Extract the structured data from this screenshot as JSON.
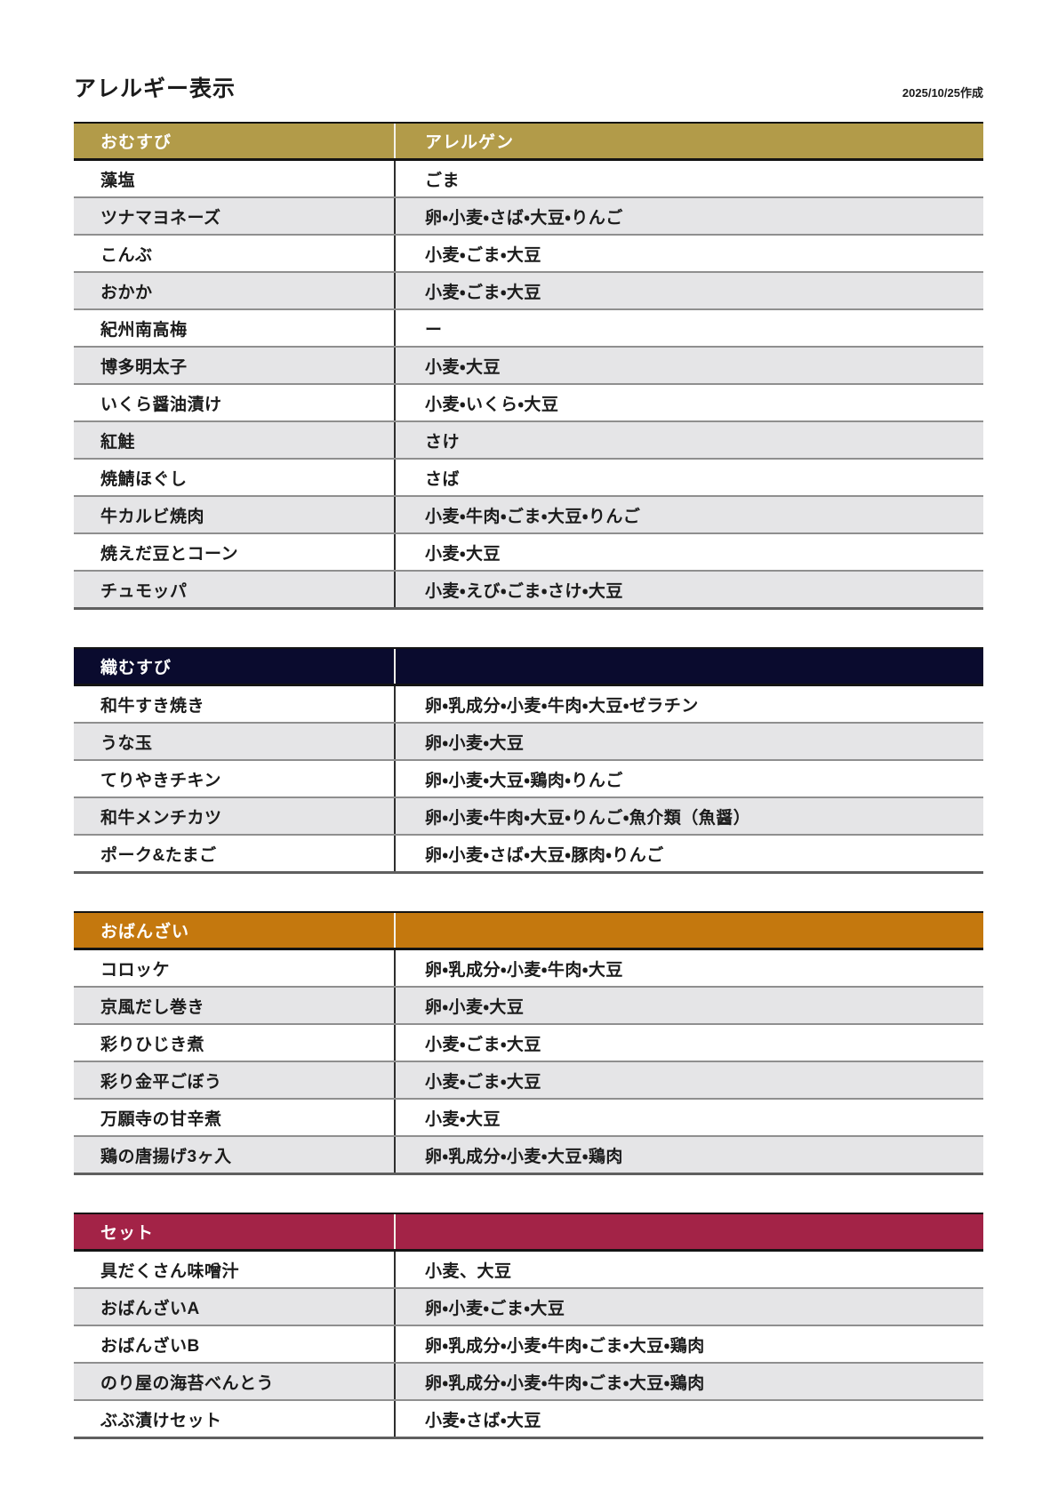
{
  "page": {
    "title": "アレルギー表示",
    "date_note": "2025/10/25作成"
  },
  "colors": {
    "row_alt": "#E5E5E7",
    "text": "#1b1b1b"
  },
  "tables": [
    {
      "id": "omusubi",
      "header": {
        "col1": "おむすび",
        "col2": "アレルゲン"
      },
      "header_color": "#B29B49",
      "rows": [
        {
          "item": "藻塩",
          "allergens": "ごま"
        },
        {
          "item": "ツナマヨネーズ",
          "allergens": "卵・小麦・さば・大豆・りんご"
        },
        {
          "item": "こんぶ",
          "allergens": "小麦・ごま・大豆"
        },
        {
          "item": "おかか",
          "allergens": "小麦・ごま・大豆"
        },
        {
          "item": "紀州南高梅",
          "allergens": "ー"
        },
        {
          "item": "博多明太子",
          "allergens": "小麦・大豆"
        },
        {
          "item": "いくら醤油漬け",
          "allergens": "小麦・いくら・大豆"
        },
        {
          "item": "紅鮭",
          "allergens": "さけ"
        },
        {
          "item": "焼鯖ほぐし",
          "allergens": "さば"
        },
        {
          "item": "牛カルビ焼肉",
          "allergens": "小麦・牛肉・ごま・大豆・りんご"
        },
        {
          "item": "焼えだ豆とコーン",
          "allergens": "小麦・大豆"
        },
        {
          "item": "チュモッパ",
          "allergens": "小麦・えび・ごま・さけ・大豆"
        }
      ]
    },
    {
      "id": "orimusubi",
      "header": {
        "col1": "織むすび",
        "col2": ""
      },
      "header_color": "#0A0B2E",
      "rows": [
        {
          "item": "和牛すき焼き",
          "allergens": "卵・乳成分・小麦・牛肉・大豆・ゼラチン"
        },
        {
          "item": "うな玉",
          "allergens": "卵・小麦・大豆"
        },
        {
          "item": "てりやきチキン",
          "allergens": "卵・小麦・大豆・鶏肉・りんご"
        },
        {
          "item": "和牛メンチカツ",
          "allergens": "卵・小麦・牛肉・大豆・りんご・魚介類（魚醤）"
        },
        {
          "item": "ポーク&たまご",
          "allergens": "卵・小麦・さば・大豆・豚肉・りんご"
        }
      ]
    },
    {
      "id": "obanzai",
      "header": {
        "col1": "おばんざい",
        "col2": ""
      },
      "header_color": "#C4780E",
      "rows": [
        {
          "item": "コロッケ",
          "allergens": "卵・乳成分・小麦・牛肉・大豆"
        },
        {
          "item": "京風だし巻き",
          "allergens": "卵・小麦・大豆"
        },
        {
          "item": "彩りひじき煮",
          "allergens": "小麦・ごま・大豆"
        },
        {
          "item": "彩り金平ごぼう",
          "allergens": "小麦・ごま・大豆"
        },
        {
          "item": "万願寺の甘辛煮",
          "allergens": "小麦・大豆"
        },
        {
          "item": "鶏の唐揚げ3ヶ入",
          "allergens": "卵・乳成分・小麦・大豆・鶏肉"
        }
      ]
    },
    {
      "id": "set",
      "header": {
        "col1": "セット",
        "col2": ""
      },
      "header_color": "#A32347",
      "rows": [
        {
          "item": "具だくさん味噌汁",
          "allergens": "小麦、大豆"
        },
        {
          "item": "おばんざいA",
          "allergens": "卵・小麦・ごま・大豆"
        },
        {
          "item": "おばんざいB",
          "allergens": "卵・乳成分・小麦・牛肉・ごま・大豆・鶏肉"
        },
        {
          "item": "のり屋の海苔べんとう",
          "allergens": "卵・乳成分・小麦・牛肉・ごま・大豆・鶏肉"
        },
        {
          "item": "ぶぶ漬けセット",
          "allergens": "小麦・さば・大豆"
        }
      ]
    }
  ]
}
